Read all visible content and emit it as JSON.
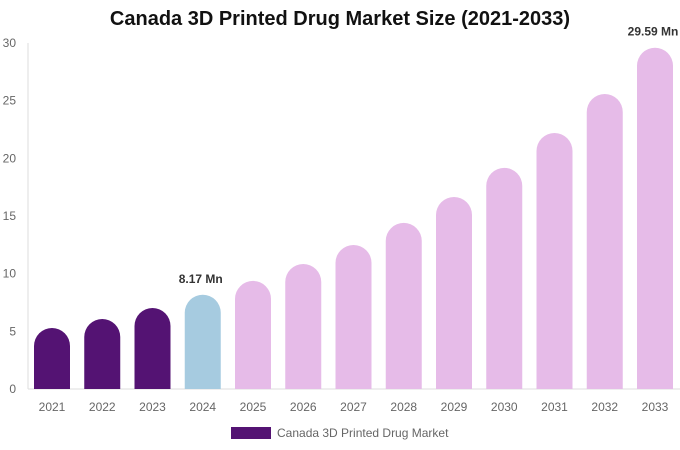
{
  "chart_data": {
    "type": "bar",
    "title": "Canada 3D Printed Drug Market Size (2021-2033)",
    "categories": [
      "2021",
      "2022",
      "2023",
      "2024",
      "2025",
      "2026",
      "2027",
      "2028",
      "2029",
      "2030",
      "2031",
      "2032",
      "2033"
    ],
    "series": [
      {
        "name": "Canada 3D Printed Drug Market",
        "values": [
          5.29,
          6.07,
          7.02,
          8.17,
          9.37,
          10.84,
          12.49,
          14.4,
          16.65,
          19.17,
          22.2,
          25.58,
          29.59
        ]
      }
    ],
    "data_labels": {
      "3": "8.17 Mn",
      "12": "29.59 Mn"
    },
    "ylim": [
      0,
      30
    ],
    "yticks": [
      0,
      5,
      10,
      15,
      20,
      25,
      30
    ],
    "grid": false,
    "legend": "bottom",
    "colors": {
      "historical": "#541373",
      "base_year": "#a6cbe0",
      "forecast": "#e6bbe8"
    }
  }
}
